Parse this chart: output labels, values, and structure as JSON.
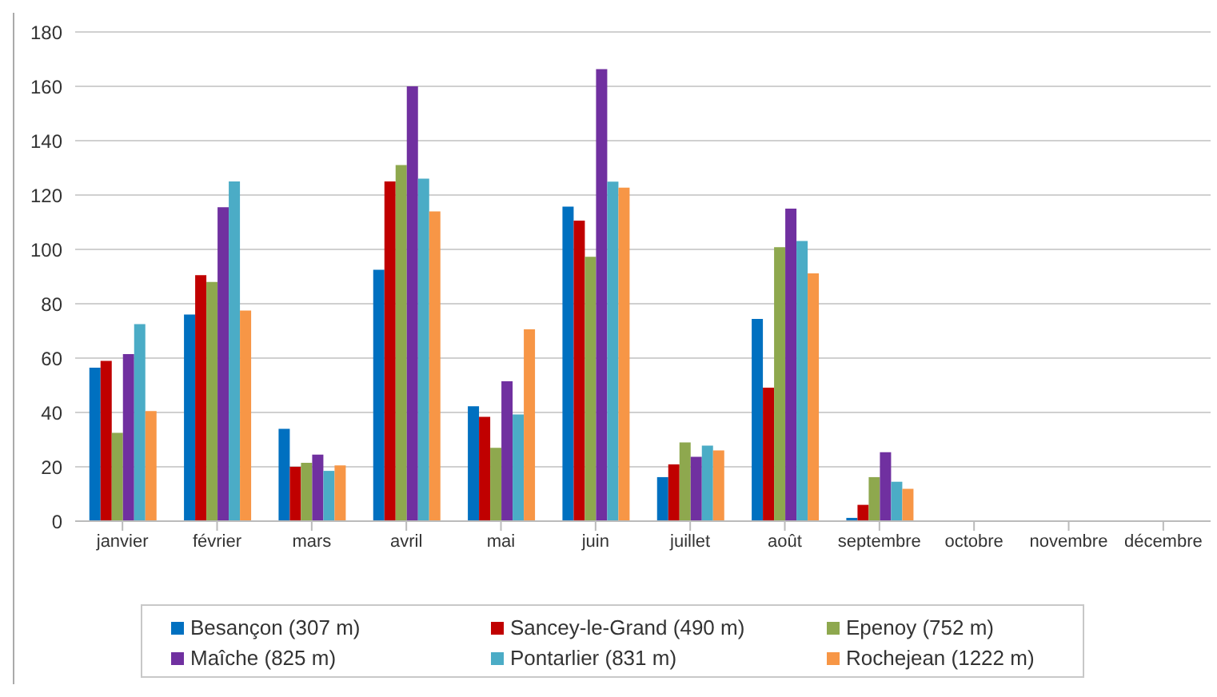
{
  "chart_data": {
    "type": "bar",
    "categories": [
      "janvier",
      "février",
      "mars",
      "avril",
      "mai",
      "juin",
      "juillet",
      "août",
      "septembre",
      "octobre",
      "novembre",
      "décembre"
    ],
    "series": [
      {
        "name": "Besançon (307 m)",
        "color": "#0070c0",
        "values": [
          56.5,
          76,
          34,
          92.5,
          42.3,
          115.7,
          16.2,
          74.4,
          1.2,
          null,
          null,
          null
        ]
      },
      {
        "name": "Sancey-le-Grand (490 m)",
        "color": "#c00000",
        "values": [
          59,
          90.5,
          20,
          125,
          38.4,
          110.6,
          20.9,
          49.1,
          6,
          null,
          null,
          null
        ]
      },
      {
        "name": "Epenoy (752 m)",
        "color": "#8ea84e",
        "values": [
          32.5,
          88,
          21.5,
          131,
          27,
          97.3,
          29,
          100.8,
          16.2,
          null,
          null,
          null
        ]
      },
      {
        "name": "Maîche (825 m)",
        "color": "#7030a0",
        "values": [
          61.5,
          115.5,
          24.5,
          160,
          51.5,
          166.3,
          23.7,
          115,
          25.4,
          null,
          null,
          null
        ]
      },
      {
        "name": "Pontarlier (831 m)",
        "color": "#4bacc6",
        "values": [
          72.5,
          125,
          18.5,
          126,
          39.3,
          124.9,
          27.8,
          103.1,
          14.5,
          null,
          null,
          null
        ]
      },
      {
        "name": "Rochejean (1222 m)",
        "color": "#f79646",
        "values": [
          40.5,
          77.5,
          20.5,
          114,
          70.6,
          122.7,
          26,
          91.2,
          11.9,
          null,
          null,
          null
        ]
      }
    ],
    "ylim": [
      0,
      180
    ],
    "yticks": [
      0,
      20,
      40,
      60,
      80,
      100,
      120,
      140,
      160,
      180
    ],
    "grid": "y",
    "legend": "bottom"
  }
}
